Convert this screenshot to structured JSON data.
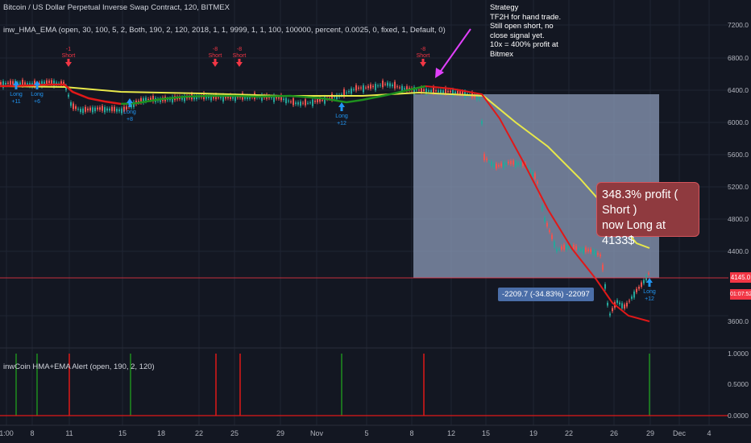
{
  "header": {
    "title": "Bitcoin / US Dollar Perpetual Inverse Swap Contract, 120, BITMEX",
    "indicator": "inw_HMA_EMA (open, 30, 100, 5, 2, Both, 190, 2, 120, 2018, 1, 1, 9999, 1, 1, 100, 100000, percent, 0.0025, 0, fixed, 1, Default, 0)",
    "sub_indicator": "inwCoin HMA+EMA Alert (open, 190, 2, 120)"
  },
  "annotation": {
    "note": "Strategy\nTF2H for hand trade.\nStill open short, no\nclose signal yet.\n10x = 400% profit at\nBitmex",
    "callout": "348.3% profit ( Short )\nnow Long at 4133$",
    "measure": "-2209.7 (-34.83%) -22097"
  },
  "price_axis": {
    "ticks": [
      "7200.0",
      "6800.0",
      "6400.0",
      "6000.0",
      "5600.0",
      "5200.0",
      "4800.0",
      "4400.0",
      "3600.0"
    ],
    "last_price": "4145.0",
    "countdown": "01:07:52"
  },
  "alert_axis": {
    "ticks": [
      "1.0000",
      "0.5000",
      "0.0000"
    ]
  },
  "time_axis": {
    "ticks": [
      "1:00",
      "8",
      "11",
      "15",
      "18",
      "22",
      "25",
      "29",
      "Nov",
      "5",
      "8",
      "12",
      "15",
      "19",
      "22",
      "26",
      "29",
      "Dec",
      "4"
    ]
  },
  "signals": [
    {
      "type": "Long",
      "value": "+11"
    },
    {
      "type": "Long",
      "value": "+6"
    },
    {
      "type": "Short",
      "value": "-1"
    },
    {
      "type": "Long",
      "value": "+8"
    },
    {
      "type": "Short",
      "value": "-8"
    },
    {
      "type": "Short",
      "value": "-8"
    },
    {
      "type": "Long",
      "value": "+12"
    },
    {
      "type": "Short",
      "value": "-8"
    },
    {
      "type": "Long",
      "value": "+12"
    }
  ],
  "colors": {
    "background": "#131722",
    "long": "#2196f3",
    "short": "#f23645",
    "ema_yellow": "#e8e84a",
    "hma_green": "#1e8f1e",
    "hma_red": "#e01818",
    "measure_box": "#8c9bb8",
    "arrow": "#e040fb"
  }
}
